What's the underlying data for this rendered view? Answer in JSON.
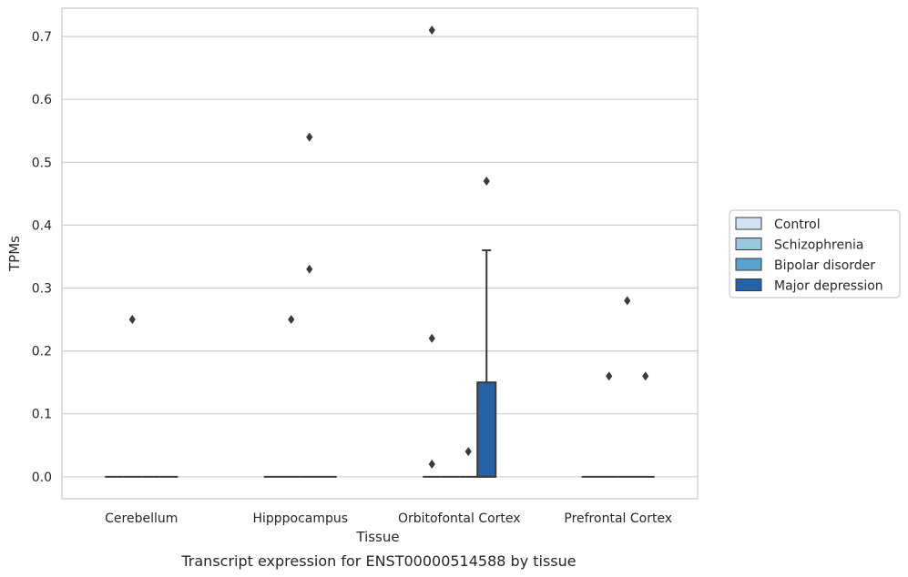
{
  "chart_data": {
    "type": "box",
    "title": "",
    "caption": "Transcript expression for ENST00000514588 by tissue",
    "xlabel": "Tissue",
    "ylabel": "TPMs",
    "ylim": [
      -0.035,
      0.745
    ],
    "yticks": [
      0.0,
      0.1,
      0.2,
      0.3,
      0.4,
      0.5,
      0.6,
      0.7
    ],
    "ytick_labels": [
      "0.0",
      "0.1",
      "0.2",
      "0.3",
      "0.4",
      "0.5",
      "0.6",
      "0.7"
    ],
    "grid": "horizontal",
    "legend_position": "right",
    "categories": [
      "Cerebellum",
      "Hipppocampus",
      "Orbitofontal Cortex",
      "Prefrontal Cortex"
    ],
    "series": [
      {
        "name": "Control",
        "color": "#d3e3f3"
      },
      {
        "name": "Schizophrenia",
        "color": "#9ac8e0"
      },
      {
        "name": "Bipolar disorder",
        "color": "#5ba3cf"
      },
      {
        "name": "Major depression",
        "color": "#2563a6"
      }
    ],
    "boxes": [
      {
        "category": "Cerebellum",
        "series": "Control",
        "q1": 0,
        "median": 0,
        "q3": 0,
        "whisker_low": 0,
        "whisker_high": 0,
        "outliers": []
      },
      {
        "category": "Cerebellum",
        "series": "Schizophrenia",
        "q1": 0,
        "median": 0,
        "q3": 0,
        "whisker_low": 0,
        "whisker_high": 0,
        "outliers": [
          0.25
        ]
      },
      {
        "category": "Cerebellum",
        "series": "Bipolar disorder",
        "q1": 0,
        "median": 0,
        "q3": 0,
        "whisker_low": 0,
        "whisker_high": 0,
        "outliers": []
      },
      {
        "category": "Cerebellum",
        "series": "Major depression",
        "q1": 0,
        "median": 0,
        "q3": 0,
        "whisker_low": 0,
        "whisker_high": 0,
        "outliers": []
      },
      {
        "category": "Hipppocampus",
        "series": "Control",
        "q1": 0,
        "median": 0,
        "q3": 0,
        "whisker_low": 0,
        "whisker_high": 0,
        "outliers": []
      },
      {
        "category": "Hipppocampus",
        "series": "Schizophrenia",
        "q1": 0,
        "median": 0,
        "q3": 0,
        "whisker_low": 0,
        "whisker_high": 0,
        "outliers": [
          0.25
        ]
      },
      {
        "category": "Hipppocampus",
        "series": "Bipolar disorder",
        "q1": 0,
        "median": 0,
        "q3": 0,
        "whisker_low": 0,
        "whisker_high": 0,
        "outliers": [
          0.54,
          0.33
        ]
      },
      {
        "category": "Hipppocampus",
        "series": "Major depression",
        "q1": 0,
        "median": 0,
        "q3": 0,
        "whisker_low": 0,
        "whisker_high": 0,
        "outliers": []
      },
      {
        "category": "Orbitofontal Cortex",
        "series": "Control",
        "q1": 0,
        "median": 0,
        "q3": 0,
        "whisker_low": 0,
        "whisker_high": 0,
        "outliers": [
          0.71,
          0.22,
          0.02
        ]
      },
      {
        "category": "Orbitofontal Cortex",
        "series": "Schizophrenia",
        "q1": 0,
        "median": 0,
        "q3": 0,
        "whisker_low": 0,
        "whisker_high": 0,
        "outliers": []
      },
      {
        "category": "Orbitofontal Cortex",
        "series": "Bipolar disorder",
        "q1": 0,
        "median": 0,
        "q3": 0,
        "whisker_low": 0,
        "whisker_high": 0,
        "outliers": [
          0.04
        ]
      },
      {
        "category": "Orbitofontal Cortex",
        "series": "Major depression",
        "q1": 0,
        "median": 0,
        "q3": 0.15,
        "whisker_low": 0,
        "whisker_high": 0.36,
        "outliers": [
          0.47
        ]
      },
      {
        "category": "Prefrontal Cortex",
        "series": "Control",
        "q1": 0,
        "median": 0,
        "q3": 0,
        "whisker_low": 0,
        "whisker_high": 0,
        "outliers": []
      },
      {
        "category": "Prefrontal Cortex",
        "series": "Schizophrenia",
        "q1": 0,
        "median": 0,
        "q3": 0,
        "whisker_low": 0,
        "whisker_high": 0,
        "outliers": [
          0.16
        ]
      },
      {
        "category": "Prefrontal Cortex",
        "series": "Bipolar disorder",
        "q1": 0,
        "median": 0,
        "q3": 0,
        "whisker_low": 0,
        "whisker_high": 0,
        "outliers": [
          0.28
        ]
      },
      {
        "category": "Prefrontal Cortex",
        "series": "Major depression",
        "q1": 0,
        "median": 0,
        "q3": 0,
        "whisker_low": 0,
        "whisker_high": 0,
        "outliers": [
          0.16
        ]
      }
    ]
  }
}
